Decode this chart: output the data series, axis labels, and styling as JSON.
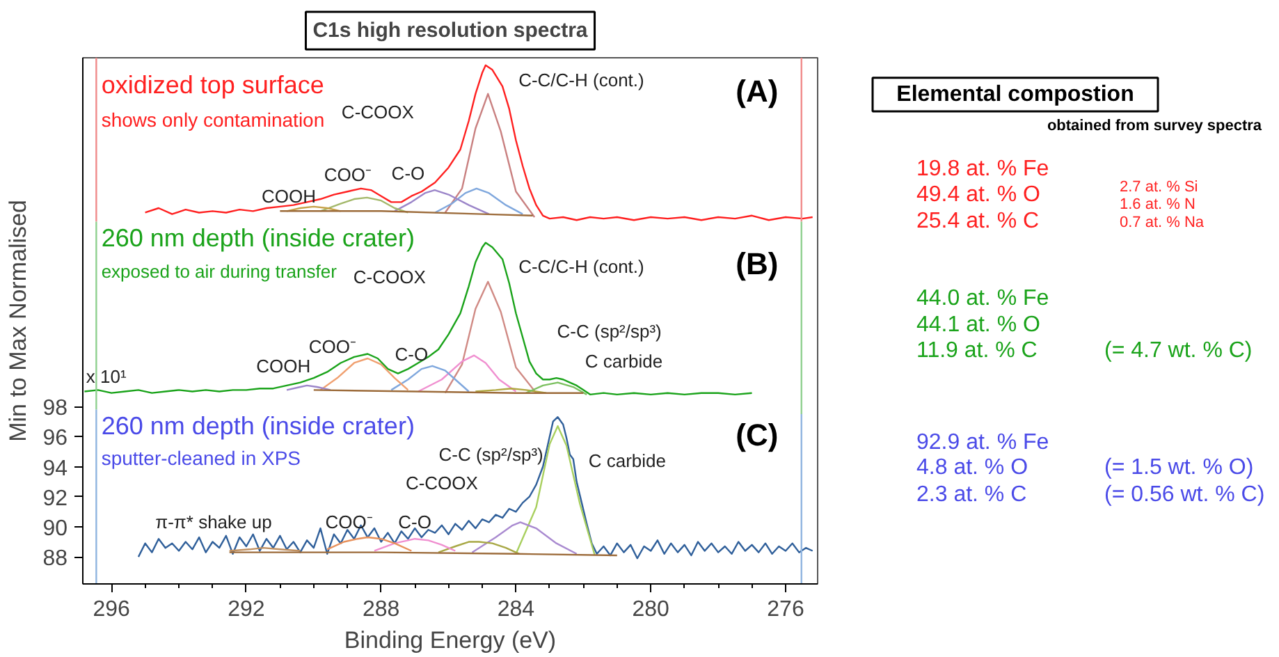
{
  "chart_data": [
    {
      "type": "line",
      "title": "C1s high resolution spectra",
      "xlabel": "Binding Energy (eV)",
      "ylabel": "Min to Max Normalised",
      "xlim": [
        296.85,
        275.05
      ],
      "ylim": [
        86.2,
        121.2
      ],
      "xticks": [
        296,
        {
          "value": 295,
          "label": null
        },
        {
          "value": 294,
          "label": null
        },
        {
          "value": 293,
          "label": null
        },
        292,
        {
          "value": 291,
          "label": null
        },
        {
          "value": 290,
          "label": null
        },
        {
          "value": 289,
          "label": null
        },
        288,
        {
          "value": 287,
          "label": null
        },
        {
          "value": 286,
          "label": null
        },
        {
          "value": 285,
          "label": null
        },
        284,
        {
          "value": 283,
          "label": null
        },
        {
          "value": 282,
          "label": null
        },
        {
          "value": 281,
          "label": null
        },
        280,
        {
          "value": 279,
          "label": null
        },
        {
          "value": 278,
          "label": null
        },
        {
          "value": 277,
          "label": null
        },
        276
      ],
      "yticks": [
        88,
        90,
        92,
        94,
        96,
        98
      ],
      "series": [
        {
          "color": "#ff2020",
          "x": [
            295.0,
            294.6,
            294.2,
            293.8,
            293.4,
            293.0,
            292.6,
            292.2,
            291.8,
            291.4,
            291.0,
            290.6,
            290.2,
            289.8,
            289.4,
            289.0,
            288.6,
            288.3,
            288.0,
            287.7,
            287.4,
            287.1,
            286.8,
            286.4,
            286.0,
            285.65,
            285.4,
            285.2,
            285.0,
            284.9,
            284.7,
            284.4,
            284.2,
            284.0,
            283.8,
            283.6,
            283.4,
            283.2,
            283.0,
            282.6,
            282.2,
            281.8,
            281.4,
            281.0,
            280.5,
            280.0,
            279.5,
            279.0,
            278.5,
            278.0,
            277.5,
            277.0,
            276.5,
            276.0,
            275.5,
            275.2
          ],
          "values": [
            110.9,
            111.2,
            110.8,
            111.1,
            110.9,
            111.0,
            110.9,
            111.1,
            111.0,
            111.2,
            111.3,
            111.4,
            111.6,
            111.8,
            112.1,
            112.3,
            112.5,
            112.4,
            112.0,
            111.6,
            111.6,
            112.0,
            112.3,
            112.9,
            113.9,
            115.1,
            117.0,
            118.8,
            120.2,
            120.7,
            120.4,
            119.3,
            117.8,
            115.7,
            114.0,
            112.5,
            111.4,
            110.7,
            110.5,
            110.6,
            110.4,
            110.6,
            110.5,
            110.6,
            110.4,
            110.6,
            110.5,
            110.6,
            110.4,
            110.6,
            110.5,
            110.7,
            110.4,
            110.6,
            110.5,
            110.6
          ]
        },
        {
          "color": "#c98080",
          "x": [
            286.1,
            285.6,
            285.2,
            284.83,
            284.45,
            284.0,
            283.45
          ],
          "values": [
            110.9,
            112.5,
            116.5,
            118.8,
            116.3,
            112.3,
            110.6
          ]
        },
        {
          "color": "#7fa7dd",
          "x": [
            286.4,
            285.9,
            285.5,
            285.17,
            284.8,
            284.3,
            283.8
          ],
          "values": [
            110.9,
            111.5,
            112.2,
            112.5,
            112.2,
            111.4,
            110.8
          ]
        },
        {
          "color": "#9b85c9",
          "x": [
            287.6,
            287.1,
            286.7,
            286.41,
            286.0,
            285.4,
            284.8
          ],
          "values": [
            111.0,
            111.6,
            112.2,
            112.4,
            112.1,
            111.4,
            110.8
          ]
        },
        {
          "color": "#a3b86a",
          "x": [
            289.8,
            289.2,
            288.8,
            288.42,
            288.0,
            287.6,
            287.2
          ],
          "values": [
            111.0,
            111.5,
            111.8,
            111.9,
            111.7,
            111.2,
            110.9
          ]
        },
        {
          "color": "#c7a24a",
          "x": [
            290.8,
            290.4,
            290.0,
            289.6,
            289.2
          ],
          "values": [
            111.0,
            111.2,
            111.3,
            111.2,
            111.0
          ]
        },
        {
          "color": "#9c6b3a",
          "x": [
            291.0,
            288.0,
            285.0,
            283.5
          ],
          "values": [
            111.0,
            111.0,
            110.8,
            110.7
          ]
        },
        {
          "color": "#1aa31a",
          "x": [
            296.8,
            296.4,
            296.0,
            295.6,
            295.2,
            294.8,
            294.4,
            294.0,
            293.6,
            293.2,
            292.8,
            292.4,
            292.0,
            291.6,
            291.2,
            290.8,
            290.4,
            290.0,
            289.6,
            289.2,
            288.8,
            288.4,
            288.1,
            287.8,
            287.5,
            287.2,
            286.9,
            286.6,
            286.3,
            286.0,
            285.65,
            285.4,
            285.2,
            285.0,
            284.9,
            284.7,
            284.4,
            284.2,
            284.0,
            283.8,
            283.6,
            283.4,
            283.2,
            283.0,
            282.8,
            282.6,
            282.4,
            282.2,
            282.0,
            281.8,
            281.4,
            281.0,
            280.5,
            280.0,
            279.5,
            279.0,
            278.5,
            278.0,
            277.5,
            277.0
          ],
          "values": [
            99.0,
            99.1,
            98.9,
            99.0,
            99.1,
            98.9,
            99.0,
            99.1,
            99.0,
            99.1,
            99.0,
            99.1,
            99.1,
            99.2,
            99.2,
            99.4,
            99.6,
            99.9,
            100.3,
            100.9,
            101.3,
            101.5,
            101.2,
            100.5,
            100.2,
            100.5,
            100.9,
            101.3,
            101.8,
            102.8,
            104.2,
            106.0,
            107.6,
            108.6,
            108.9,
            108.6,
            107.8,
            106.2,
            104.2,
            102.6,
            101.0,
            100.2,
            99.8,
            99.8,
            99.9,
            99.8,
            99.6,
            99.4,
            99.1,
            98.8,
            98.9,
            98.8,
            98.9,
            98.8,
            98.9,
            98.8,
            98.9,
            98.9,
            98.8,
            98.9
          ]
        },
        {
          "color": "#d08a84",
          "x": [
            286.1,
            285.6,
            285.2,
            284.83,
            284.45,
            284.0,
            283.4
          ],
          "values": [
            98.9,
            100.8,
            104.5,
            106.3,
            104.3,
            100.6,
            98.9
          ]
        },
        {
          "color": "#f08fd0",
          "x": [
            286.9,
            286.2,
            285.6,
            285.24,
            284.9,
            284.5,
            284.0
          ],
          "values": [
            99.0,
            99.8,
            101.0,
            101.4,
            100.9,
            99.8,
            99.0
          ]
        },
        {
          "color": "#7fa7dd",
          "x": [
            287.7,
            287.2,
            286.8,
            286.48,
            286.1,
            285.8,
            285.4
          ],
          "values": [
            99.1,
            99.8,
            100.5,
            100.7,
            100.4,
            99.8,
            99.0
          ]
        },
        {
          "color": "#f0a070",
          "x": [
            289.8,
            289.3,
            288.8,
            288.4,
            288.0,
            287.6,
            287.2
          ],
          "values": [
            99.1,
            99.9,
            100.9,
            101.2,
            100.8,
            99.9,
            99.1
          ]
        },
        {
          "color": "#9b85c9",
          "x": [
            290.8,
            290.4,
            290.2,
            289.9,
            289.5
          ],
          "values": [
            99.1,
            99.3,
            99.4,
            99.3,
            99.1
          ]
        },
        {
          "color": "#b0a840",
          "x": [
            285.2,
            284.6,
            284.14,
            283.7,
            283.1
          ],
          "values": [
            99.0,
            99.1,
            99.2,
            99.1,
            98.9
          ]
        },
        {
          "color": "#7cc060",
          "x": [
            283.7,
            283.2,
            282.76,
            282.3,
            281.9
          ],
          "values": [
            98.9,
            99.4,
            99.6,
            99.3,
            98.8
          ]
        },
        {
          "color": "#9c6b3a",
          "x": [
            290.0,
            287.0,
            284.0,
            282.0
          ],
          "values": [
            99.1,
            99.0,
            98.9,
            98.9
          ]
        },
        {
          "color": "#2f5f9a",
          "x": [
            295.2,
            295.0,
            294.8,
            294.6,
            294.4,
            294.2,
            294.0,
            293.8,
            293.6,
            293.4,
            293.2,
            293.0,
            292.8,
            292.6,
            292.4,
            292.2,
            292.0,
            291.8,
            291.6,
            291.4,
            291.2,
            291.0,
            290.8,
            290.6,
            290.4,
            290.2,
            290.0,
            289.8,
            289.6,
            289.4,
            289.2,
            289.0,
            288.8,
            288.6,
            288.4,
            288.2,
            288.0,
            287.8,
            287.6,
            287.4,
            287.2,
            287.0,
            286.8,
            286.6,
            286.4,
            286.2,
            286.0,
            285.8,
            285.6,
            285.4,
            285.2,
            285.0,
            284.8,
            284.6,
            284.4,
            284.2,
            284.0,
            283.8,
            283.6,
            283.4,
            283.2,
            283.0,
            282.9,
            282.76,
            282.6,
            282.5,
            282.4,
            282.3,
            282.2,
            282.05,
            281.9,
            281.75,
            281.6,
            281.4,
            281.2,
            281.0,
            280.8,
            280.6,
            280.4,
            280.2,
            280.0,
            279.8,
            279.6,
            279.4,
            279.2,
            279.0,
            278.8,
            278.6,
            278.4,
            278.2,
            278.0,
            277.8,
            277.6,
            277.4,
            277.2,
            277.0,
            276.8,
            276.6,
            276.4,
            276.2,
            276.0,
            275.8,
            275.6,
            275.4,
            275.2
          ],
          "values": [
            88.0,
            88.9,
            88.3,
            89.2,
            88.6,
            88.9,
            88.4,
            89.0,
            88.5,
            89.3,
            88.3,
            89.0,
            88.6,
            89.4,
            88.2,
            89.3,
            88.7,
            89.5,
            88.4,
            89.2,
            88.6,
            89.4,
            88.5,
            89.0,
            88.3,
            89.1,
            88.6,
            89.9,
            88.2,
            89.5,
            88.9,
            89.8,
            89.2,
            90.1,
            89.3,
            89.9,
            89.0,
            89.6,
            88.9,
            89.7,
            89.2,
            89.9,
            89.3,
            89.8,
            89.6,
            90.1,
            89.5,
            90.2,
            89.8,
            90.4,
            89.9,
            90.5,
            90.3,
            90.8,
            90.6,
            91.2,
            91.0,
            91.6,
            92.0,
            92.8,
            94.0,
            96.0,
            97.0,
            97.3,
            96.8,
            95.9,
            94.8,
            94.5,
            93.0,
            91.6,
            90.2,
            88.9,
            88.2,
            88.7,
            88.1,
            88.9,
            88.3,
            88.8,
            87.9,
            88.7,
            88.4,
            89.1,
            88.2,
            88.9,
            88.3,
            88.8,
            88.1,
            89.0,
            88.4,
            88.9,
            88.3,
            88.7,
            88.2,
            89.0,
            88.4,
            88.8,
            88.3,
            88.9,
            88.2,
            88.7,
            88.4,
            88.9,
            88.3,
            88.6,
            88.4
          ]
        },
        {
          "color": "#a8cf5e",
          "x": [
            284.0,
            283.4,
            283.0,
            282.76,
            282.5,
            282.1,
            281.66
          ],
          "values": [
            88.2,
            91.3,
            95.5,
            96.7,
            95.4,
            91.5,
            88.1
          ]
        },
        {
          "color": "#a98ad0",
          "x": [
            285.3,
            284.6,
            284.1,
            283.87,
            283.4,
            282.8,
            282.2
          ],
          "values": [
            88.3,
            89.3,
            90.1,
            90.3,
            89.9,
            88.9,
            88.2
          ]
        },
        {
          "color": "#a8a845",
          "x": [
            286.3,
            285.8,
            285.4,
            285.1,
            284.7,
            284.3,
            283.9
          ],
          "values": [
            88.3,
            88.7,
            89.0,
            89.0,
            88.9,
            88.6,
            88.2
          ]
        },
        {
          "color": "#f08fd0",
          "x": [
            288.2,
            287.6,
            287.2,
            287.0,
            286.6,
            286.2,
            285.8
          ],
          "values": [
            88.4,
            88.9,
            89.1,
            89.2,
            89.1,
            88.8,
            88.4
          ]
        },
        {
          "color": "#e8905a",
          "x": [
            289.6,
            289.1,
            288.7,
            288.4,
            288.0,
            287.6,
            287.1
          ],
          "values": [
            88.5,
            89.0,
            89.2,
            89.3,
            89.2,
            88.9,
            88.4
          ]
        },
        {
          "color": "#c09060",
          "x": [
            292.5,
            291.9,
            291.5,
            291.0,
            290.4
          ],
          "values": [
            88.4,
            88.5,
            88.6,
            88.5,
            88.4
          ]
        },
        {
          "color": "#9c6b3a",
          "x": [
            292.5,
            288.0,
            284.0,
            281.0
          ],
          "values": [
            88.3,
            88.3,
            88.2,
            88.1
          ]
        },
        {
          "color": "#f08a8a",
          "x": [
            296.45,
            296.45
          ],
          "values": [
            121.2,
            110.3
          ]
        },
        {
          "color": "#8fd08f",
          "x": [
            296.45,
            296.45
          ],
          "values": [
            110.3,
            97.8
          ]
        },
        {
          "color": "#8fb4e0",
          "x": [
            296.45,
            296.45
          ],
          "values": [
            97.8,
            86.2
          ]
        },
        {
          "color": "#f08a8a",
          "x": [
            275.53,
            275.53
          ],
          "values": [
            121.2,
            110.3
          ]
        },
        {
          "color": "#8fd08f",
          "x": [
            275.53,
            275.53
          ],
          "values": [
            110.3,
            97.5
          ]
        },
        {
          "color": "#8fb4e0",
          "x": [
            275.53,
            275.53
          ],
          "values": [
            97.5,
            86.2
          ]
        }
      ],
      "annotations": [
        "oxidized top surface",
        "shows only contamination",
        "260 nm depth (inside crater)",
        "exposed to air during transfer",
        "260 nm depth (inside crater)",
        "sputter-cleaned in XPS",
        "COOH",
        "COO⁻",
        "C-O",
        "C-COOX",
        "C-C/C-H (cont.)",
        "COOH",
        "COO⁻",
        "C-O",
        "C-COOX",
        "C-C/C-H (cont.)",
        "C-C (sp²/sp³)",
        "C carbide",
        "π-π* shake up",
        "COO⁻",
        "C-O",
        "C-COOX",
        "C-C (sp²/sp³)",
        "C carbide",
        "x 10¹",
        "(A)",
        "(B)",
        "(C)"
      ]
    },
    {
      "type": "other",
      "title": "Elemental compostion",
      "subtitle": "obtained from survey spectra",
      "annotations": [
        "19.8 at. % Fe",
        "49.4 at. % O",
        "25.4 at. % C",
        "2.7 at. % Si",
        "1.6 at. % N",
        "0.7 at. % Na",
        "44.0 at. % Fe",
        "44.1 at. % O",
        "11.9 at. % C",
        "(= 4.7 wt. % C)",
        "92.9 at. % Fe",
        "4.8 at. % O",
        "2.3 at. % C",
        "(= 1.5 wt. % O)",
        "(= 0.56 wt. % C)"
      ]
    }
  ]
}
